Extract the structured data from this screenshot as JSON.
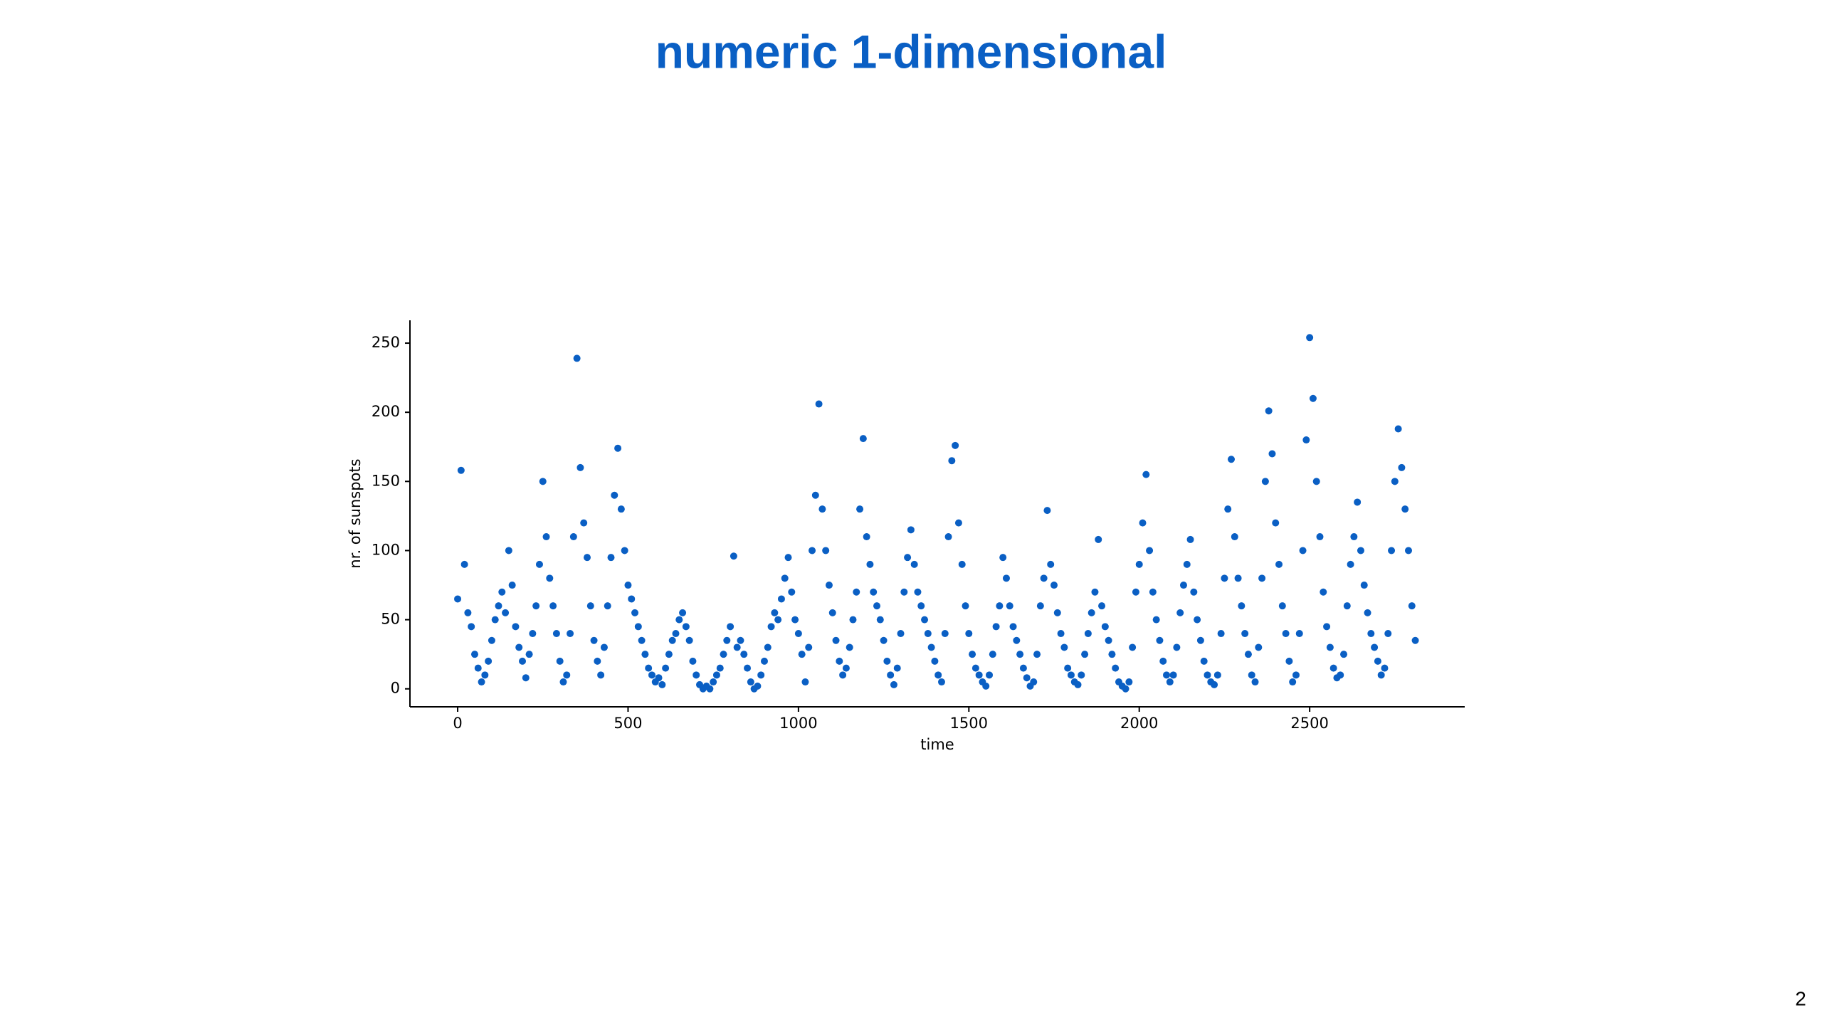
{
  "title": "numeric 1-dimensional",
  "page_number": "2",
  "chart_data": {
    "type": "scatter",
    "xlabel": "time",
    "ylabel": "nr. of sunspots",
    "color": "#0a5fc4",
    "xlim": [
      -140,
      2955
    ],
    "ylim": [
      -13,
      266.5
    ],
    "xticks": [
      0,
      500,
      1000,
      1500,
      2000,
      2500
    ],
    "yticks": [
      0,
      50,
      100,
      150,
      200,
      250
    ],
    "grid": false,
    "series": [
      {
        "x": [
          0,
          10,
          20,
          30,
          40,
          50,
          60,
          70,
          80,
          90,
          100,
          110,
          120,
          130,
          140,
          150,
          160,
          170,
          180,
          190,
          200,
          210,
          220,
          230,
          240,
          250,
          260,
          270,
          280,
          290,
          300,
          310,
          320,
          330,
          340,
          350,
          360,
          370,
          380,
          390,
          400,
          410,
          420,
          430,
          440,
          450,
          460,
          470,
          480,
          490,
          500,
          510,
          520,
          530,
          540,
          550,
          560,
          570,
          580,
          590,
          600,
          610,
          620,
          630,
          640,
          650,
          660,
          670,
          680,
          690,
          700,
          710,
          720,
          730,
          740,
          750,
          760,
          770,
          780,
          790,
          800,
          810,
          820,
          830,
          840,
          850,
          860,
          870,
          880,
          890,
          900,
          910,
          920,
          930,
          940,
          950,
          960,
          970,
          980,
          990,
          1000,
          1010,
          1020,
          1030,
          1040,
          1050,
          1060,
          1070,
          1080,
          1090,
          1100,
          1110,
          1120,
          1130,
          1140,
          1150,
          1160,
          1170,
          1180,
          1190,
          1200,
          1210,
          1220,
          1230,
          1240,
          1250,
          1260,
          1270,
          1280,
          1290,
          1300,
          1310,
          1320,
          1330,
          1340,
          1350,
          1360,
          1370,
          1380,
          1390,
          1400,
          1410,
          1420,
          1430,
          1440,
          1450,
          1460,
          1470,
          1480,
          1490,
          1500,
          1510,
          1520,
          1530,
          1540,
          1550,
          1560,
          1570,
          1580,
          1590,
          1600,
          1610,
          1620,
          1630,
          1640,
          1650,
          1660,
          1670,
          1680,
          1690,
          1700,
          1710,
          1720,
          1730,
          1740,
          1750,
          1760,
          1770,
          1780,
          1790,
          1800,
          1810,
          1820,
          1830,
          1840,
          1850,
          1860,
          1870,
          1880,
          1890,
          1900,
          1910,
          1920,
          1930,
          1940,
          1950,
          1960,
          1970,
          1980,
          1990,
          2000,
          2010,
          2020,
          2030,
          2040,
          2050,
          2060,
          2070,
          2080,
          2090,
          2100,
          2110,
          2120,
          2130,
          2140,
          2150,
          2160,
          2170,
          2180,
          2190,
          2200,
          2210,
          2220,
          2230,
          2240,
          2250,
          2260,
          2270,
          2280,
          2290,
          2300,
          2310,
          2320,
          2330,
          2340,
          2350,
          2360,
          2370,
          2380,
          2390,
          2400,
          2410,
          2420,
          2430,
          2440,
          2450,
          2460,
          2470,
          2480,
          2490,
          2500,
          2510,
          2520,
          2530,
          2540,
          2550,
          2560,
          2570,
          2580,
          2590,
          2600,
          2610,
          2620,
          2630,
          2640,
          2650,
          2660,
          2670,
          2680,
          2690,
          2700,
          2710,
          2720,
          2730,
          2740,
          2750,
          2760,
          2770,
          2780,
          2790,
          2800,
          2810
        ],
        "values": [
          65,
          158,
          90,
          55,
          45,
          25,
          15,
          5,
          10,
          20,
          35,
          50,
          60,
          70,
          55,
          100,
          75,
          45,
          30,
          20,
          8,
          25,
          40,
          60,
          90,
          150,
          110,
          80,
          60,
          40,
          20,
          5,
          10,
          40,
          110,
          239,
          160,
          120,
          95,
          60,
          35,
          20,
          10,
          30,
          60,
          95,
          140,
          174,
          130,
          100,
          75,
          65,
          55,
          45,
          35,
          25,
          15,
          10,
          5,
          8,
          3,
          15,
          25,
          35,
          40,
          50,
          55,
          45,
          35,
          20,
          10,
          3,
          0,
          2,
          0,
          5,
          10,
          15,
          25,
          35,
          45,
          96,
          30,
          35,
          25,
          15,
          5,
          0,
          2,
          10,
          20,
          30,
          45,
          55,
          50,
          65,
          80,
          95,
          70,
          50,
          40,
          25,
          5,
          30,
          100,
          140,
          206,
          130,
          100,
          75,
          55,
          35,
          20,
          10,
          15,
          30,
          50,
          70,
          130,
          181,
          110,
          90,
          70,
          60,
          50,
          35,
          20,
          10,
          3,
          15,
          40,
          70,
          95,
          115,
          90,
          70,
          60,
          50,
          40,
          30,
          20,
          10,
          5,
          40,
          110,
          165,
          176,
          120,
          90,
          60,
          40,
          25,
          15,
          10,
          5,
          2,
          10,
          25,
          45,
          60,
          95,
          80,
          60,
          45,
          35,
          25,
          15,
          8,
          2,
          5,
          25,
          60,
          80,
          129,
          90,
          75,
          55,
          40,
          30,
          15,
          10,
          5,
          3,
          10,
          25,
          40,
          55,
          70,
          108,
          60,
          45,
          35,
          25,
          15,
          5,
          2,
          0,
          5,
          30,
          70,
          90,
          120,
          155,
          100,
          70,
          50,
          35,
          20,
          10,
          5,
          10,
          30,
          55,
          75,
          90,
          108,
          70,
          50,
          35,
          20,
          10,
          5,
          3,
          10,
          40,
          80,
          130,
          166,
          110,
          80,
          60,
          40,
          25,
          10,
          5,
          30,
          80,
          150,
          201,
          170,
          120,
          90,
          60,
          40,
          20,
          5,
          10,
          40,
          100,
          180,
          254,
          210,
          150,
          110,
          70,
          45,
          30,
          15,
          8,
          10,
          25,
          60,
          90,
          110,
          135,
          100,
          75,
          55,
          40,
          30,
          20,
          10,
          15,
          40,
          100,
          150,
          188,
          160,
          130,
          100,
          60,
          35
        ]
      }
    ]
  }
}
